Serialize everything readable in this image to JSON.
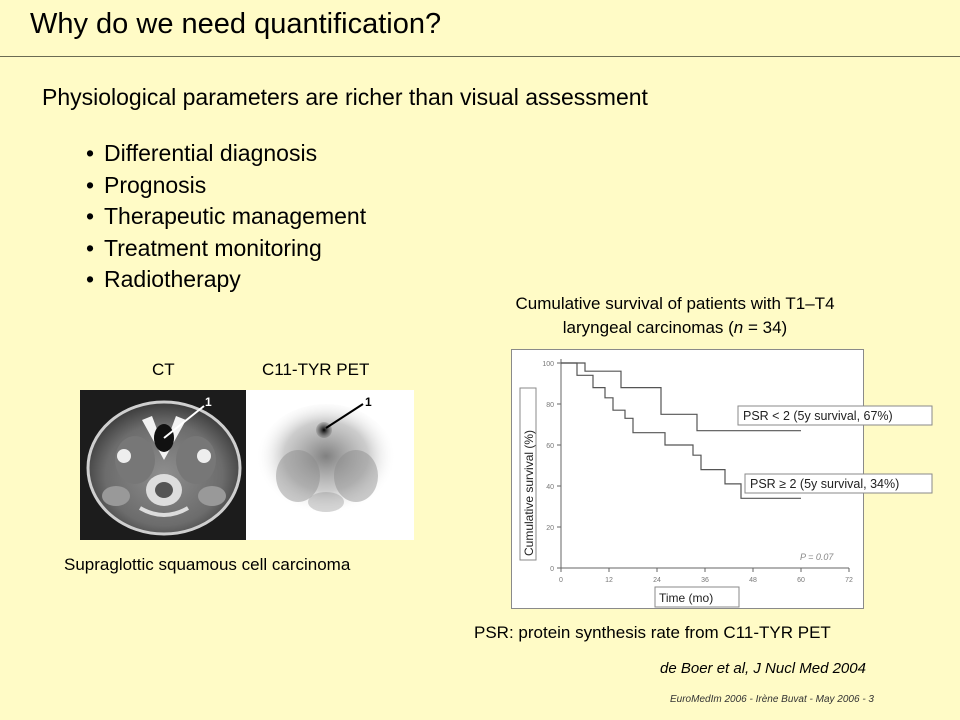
{
  "slide": {
    "title": "Why do we need quantification?",
    "subtitle": "Physiological parameters are richer than visual assessment",
    "bullets": [
      "Differential diagnosis",
      "Prognosis",
      "Therapeutic management",
      "Treatment monitoring",
      "Radiotherapy"
    ],
    "bullet_symbol": "•",
    "chart_title_line1": "Cumulative survival of patients with T1–T4",
    "chart_title_line2_prefix": "laryngeal carcinomas (",
    "chart_title_line2_italic": "n",
    "chart_title_line2_suffix": " = 34)",
    "ct_label": "CT",
    "pet_label": "C11-TYR PET",
    "ct_marker": "1",
    "pet_marker": "1",
    "image_caption": "Supraglottic squamous cell carcinoma",
    "psr_caption": "PSR: protein synthesis rate from C11-TYR PET",
    "citation": "de Boer et al, J Nucl Med 2004",
    "footer": "EuroMedIm 2006  - Irène Buvat - May 2006 - 3"
  },
  "colors": {
    "background": "#fffbc6",
    "chart_background": "#ffffff",
    "curve": "#555555"
  },
  "chart_data": {
    "type": "line",
    "subtype": "kaplan-meier step",
    "xlabel": "Time (mo)",
    "ylabel": "Cumulative survival (%)",
    "xlim": [
      0,
      72
    ],
    "ylim": [
      0,
      100
    ],
    "xticks": [
      0,
      12,
      24,
      36,
      48,
      60,
      72
    ],
    "yticks": [
      0,
      20,
      40,
      60,
      80,
      100
    ],
    "annotation": "P = 0.07",
    "series": [
      {
        "name": "PSR < 2 (5y survival, 67%)",
        "x": [
          0,
          6,
          6,
          15,
          15,
          25,
          25,
          34,
          34,
          48,
          48,
          60
        ],
        "y": [
          100,
          100,
          96,
          96,
          88,
          88,
          75,
          75,
          67,
          67,
          67,
          67
        ]
      },
      {
        "name": "PSR ≥ 2 (5y survival, 34%)",
        "x": [
          0,
          4,
          4,
          8,
          8,
          11,
          11,
          13,
          13,
          16,
          16,
          18,
          18,
          26,
          26,
          33,
          33,
          35,
          35,
          41,
          41,
          45,
          45,
          60
        ],
        "y": [
          100,
          100,
          94,
          94,
          88,
          88,
          83,
          83,
          77,
          77,
          73,
          73,
          66,
          66,
          60,
          60,
          55,
          55,
          48,
          48,
          41,
          41,
          34,
          34
        ]
      }
    ]
  }
}
